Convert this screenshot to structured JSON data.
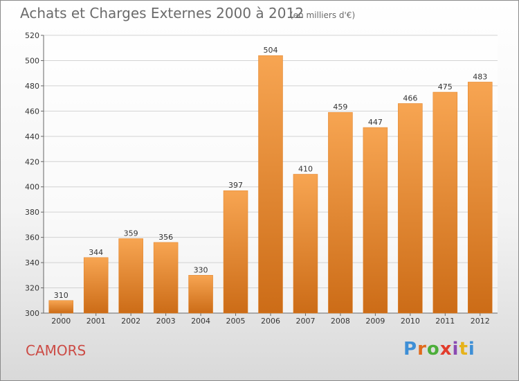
{
  "header": {
    "title": "Achats et Charges Externes 2000 à 2012",
    "subtitle": "(en milliers d'€)"
  },
  "footer": {
    "commune": "CAMORS",
    "logo_text": "Proxiti",
    "logo_colors": [
      "#3e8fd6",
      "#e06a1c",
      "#4cae3a",
      "#e23c2c",
      "#8a4ab2",
      "#e6b21a",
      "#3e8fd6"
    ]
  },
  "chart_data": {
    "type": "bar",
    "categories": [
      "2000",
      "2001",
      "2002",
      "2003",
      "2004",
      "2005",
      "2006",
      "2007",
      "2008",
      "2009",
      "2010",
      "2011",
      "2012"
    ],
    "values": [
      310,
      344,
      359,
      356,
      330,
      397,
      504,
      410,
      459,
      447,
      466,
      475,
      483
    ],
    "ylim": [
      300,
      520
    ],
    "yticks": [
      300,
      320,
      340,
      360,
      380,
      400,
      420,
      440,
      460,
      480,
      500,
      520
    ],
    "grid": true,
    "data_labels": true,
    "bar_color": "#f0943a",
    "bar_color_dark": "#cf6f1a"
  }
}
